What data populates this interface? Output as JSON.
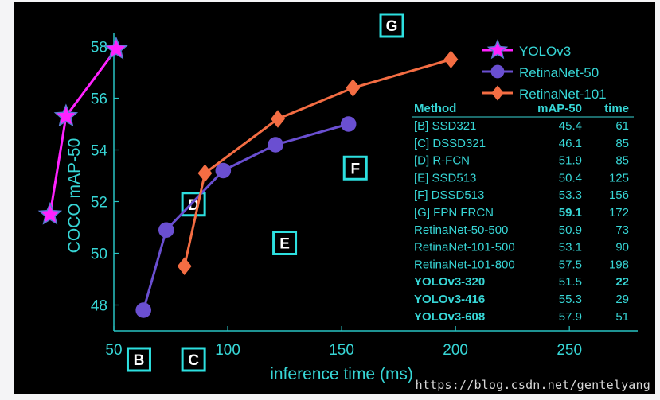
{
  "chart_data": {
    "type": "line",
    "xlabel": "inference time (ms)",
    "ylabel": "COCO mAP-50",
    "xlim": [
      50,
      280
    ],
    "ylim": [
      47,
      58.2
    ],
    "x_ticks": [
      50,
      100,
      150,
      200,
      250
    ],
    "y_ticks": [
      48,
      50,
      52,
      54,
      56,
      58
    ],
    "grid": false,
    "legend_position": "top-right",
    "series": [
      {
        "name": "YOLOv3",
        "color": "#ff22ff",
        "marker": "star",
        "points": [
          [
            22,
            51.5
          ],
          [
            29,
            55.3
          ],
          [
            51,
            57.9
          ]
        ]
      },
      {
        "name": "RetinaNet-50",
        "color": "#6a4fd1",
        "marker": "circle",
        "points": [
          [
            73,
            50.9
          ],
          [
            98,
            53.2
          ],
          [
            121,
            54.2
          ],
          [
            153,
            55.0
          ],
          [
            63,
            47.8
          ]
        ]
      },
      {
        "name": "RetinaNet-101",
        "color": "#f46d43",
        "marker": "diamond",
        "points": [
          [
            81,
            49.5
          ],
          [
            90,
            53.1
          ],
          [
            122,
            55.2
          ],
          [
            155,
            56.4
          ],
          [
            198,
            57.5
          ]
        ]
      }
    ],
    "box_markers": [
      {
        "label": "B",
        "x": 61,
        "y": 45.4
      },
      {
        "label": "C",
        "x": 85,
        "y": 46.1
      },
      {
        "label": "D",
        "x": 85,
        "y": 51.9
      },
      {
        "label": "E",
        "x": 125,
        "y": 50.4
      },
      {
        "label": "F",
        "x": 156,
        "y": 53.3
      },
      {
        "label": "G",
        "x": 172,
        "y": 59.1
      }
    ],
    "table": {
      "headers": [
        "Method",
        "mAP-50",
        "time"
      ],
      "rows": [
        {
          "method": "[B] SSD321",
          "map": "45.4",
          "time": "61",
          "bold_method": false,
          "bold_map": false,
          "bold_time": false
        },
        {
          "method": "[C] DSSD321",
          "map": "46.1",
          "time": "85",
          "bold_method": false,
          "bold_map": false,
          "bold_time": false
        },
        {
          "method": "[D] R-FCN",
          "map": "51.9",
          "time": "85",
          "bold_method": false,
          "bold_map": false,
          "bold_time": false
        },
        {
          "method": "[E] SSD513",
          "map": "50.4",
          "time": "125",
          "bold_method": false,
          "bold_map": false,
          "bold_time": false
        },
        {
          "method": "[F] DSSD513",
          "map": "53.3",
          "time": "156",
          "bold_method": false,
          "bold_map": false,
          "bold_time": false
        },
        {
          "method": "[G] FPN FRCN",
          "map": "59.1",
          "time": "172",
          "bold_method": false,
          "bold_map": true,
          "bold_time": false
        },
        {
          "method": "RetinaNet-50-500",
          "map": "50.9",
          "time": "73",
          "bold_method": false,
          "bold_map": false,
          "bold_time": false
        },
        {
          "method": "RetinaNet-101-500",
          "map": "53.1",
          "time": "90",
          "bold_method": false,
          "bold_map": false,
          "bold_time": false
        },
        {
          "method": "RetinaNet-101-800",
          "map": "57.5",
          "time": "198",
          "bold_method": false,
          "bold_map": false,
          "bold_time": false
        },
        {
          "method": "YOLOv3-320",
          "map": "51.5",
          "time": "22",
          "bold_method": true,
          "bold_map": false,
          "bold_time": true
        },
        {
          "method": "YOLOv3-416",
          "map": "55.3",
          "time": "29",
          "bold_method": true,
          "bold_map": false,
          "bold_time": false
        },
        {
          "method": "YOLOv3-608",
          "map": "57.9",
          "time": "51",
          "bold_method": true,
          "bold_map": false,
          "bold_time": false
        }
      ]
    },
    "colors": {
      "background": "#000000",
      "axis": "#29c4c4",
      "text": "#37d6d6",
      "box": "#2de0e0"
    }
  },
  "watermark": "https://blog.csdn.net/gentelyang"
}
